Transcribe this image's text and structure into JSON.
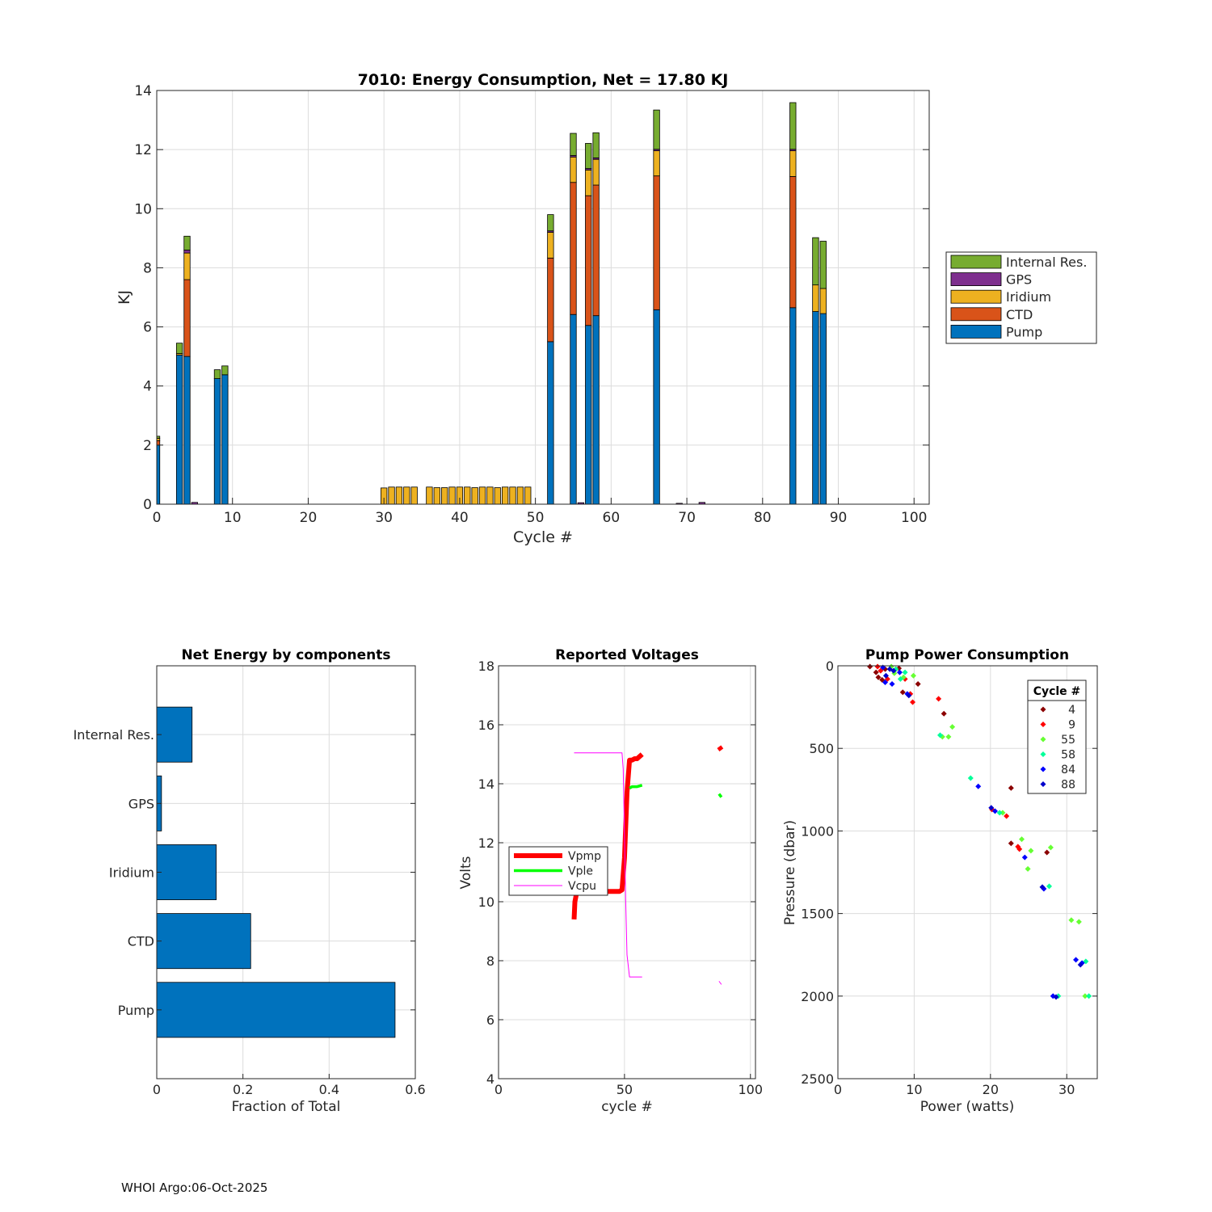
{
  "footer": "WHOI Argo:06-Oct-2025",
  "chart_data": [
    {
      "type": "bar",
      "stacked": true,
      "title": "7010: Energy Consumption,  Net =  17.80 KJ",
      "xlabel": "Cycle #",
      "ylabel": "KJ",
      "xlim": [
        0,
        102
      ],
      "ylim": [
        0,
        14
      ],
      "xticks": [
        0,
        10,
        20,
        30,
        40,
        50,
        60,
        70,
        80,
        90,
        100
      ],
      "yticks": [
        0,
        2,
        4,
        6,
        8,
        10,
        12,
        14
      ],
      "grid": true,
      "legend_location": "outside-right",
      "legend_order": [
        "Internal Res.",
        "GPS",
        "Iridium",
        "CTD",
        "Pump"
      ],
      "colors": {
        "Pump": "#0072BD",
        "CTD": "#D95319",
        "Iridium": "#EDB120",
        "GPS": "#7E2F8E",
        "Internal Res.": "#77AC30"
      },
      "categories": [
        0,
        3,
        4,
        5,
        8,
        9,
        30,
        31,
        32,
        33,
        34,
        36,
        37,
        38,
        39,
        40,
        41,
        42,
        43,
        44,
        45,
        46,
        47,
        48,
        49,
        52,
        55,
        56,
        57,
        58,
        66,
        69,
        72,
        84,
        87,
        88
      ],
      "series": [
        {
          "name": "Pump",
          "values": [
            2.0,
            5.05,
            5.0,
            0,
            4.25,
            4.38,
            0,
            0,
            0,
            0,
            0,
            0,
            0,
            0,
            0,
            0,
            0,
            0,
            0,
            0,
            0,
            0,
            0,
            0,
            0,
            5.5,
            6.42,
            0,
            6.05,
            6.38,
            6.58,
            0,
            0,
            6.65,
            6.52,
            6.45
          ]
        },
        {
          "name": "CTD",
          "values": [
            0.15,
            0,
            2.6,
            0,
            0,
            0,
            0,
            0,
            0,
            0,
            0,
            0,
            0,
            0,
            0,
            0,
            0,
            0,
            0,
            0,
            0,
            0,
            0,
            0,
            0,
            2.83,
            4.47,
            0,
            4.39,
            4.42,
            4.53,
            0,
            0,
            4.44,
            0,
            0
          ]
        },
        {
          "name": "Iridium",
          "values": [
            0.08,
            0.05,
            0.9,
            0,
            0,
            0,
            0.55,
            0.58,
            0.58,
            0.58,
            0.58,
            0.58,
            0.56,
            0.56,
            0.58,
            0.58,
            0.58,
            0.56,
            0.58,
            0.58,
            0.56,
            0.58,
            0.58,
            0.58,
            0.58,
            0.87,
            0.86,
            0,
            0.87,
            0.87,
            0.85,
            0,
            0,
            0.87,
            0.9,
            0.85
          ]
        },
        {
          "name": "GPS",
          "values": [
            0,
            0,
            0.1,
            0.06,
            0,
            0,
            0,
            0,
            0,
            0,
            0,
            0,
            0,
            0,
            0,
            0,
            0,
            0,
            0,
            0,
            0,
            0,
            0,
            0,
            0,
            0.05,
            0.05,
            0.05,
            0.05,
            0.05,
            0.05,
            0.03,
            0.06,
            0.05,
            0,
            0
          ]
        },
        {
          "name": "Internal Res.",
          "values": [
            0.07,
            0.35,
            0.47,
            0,
            0.3,
            0.3,
            0,
            0,
            0,
            0,
            0,
            0,
            0,
            0,
            0,
            0,
            0,
            0,
            0,
            0,
            0,
            0,
            0,
            0,
            0,
            0.55,
            0.75,
            0,
            0.85,
            0.85,
            1.33,
            0,
            0,
            1.58,
            1.6,
            1.6
          ]
        }
      ]
    },
    {
      "type": "bar",
      "orientation": "horizontal",
      "title": "Net Energy by components",
      "xlabel": "Fraction of Total",
      "ylabel": "",
      "xlim": [
        0,
        0.6
      ],
      "xticks": [
        0,
        0.2,
        0.4,
        0.6
      ],
      "xtick_labels": [
        "0",
        "0.2",
        "0.4",
        "0.6"
      ],
      "grid": true,
      "color": "#0072BD",
      "categories": [
        "Pump",
        "CTD",
        "Iridium",
        "GPS",
        "Internal Res."
      ],
      "values": [
        0.553,
        0.218,
        0.138,
        0.011,
        0.082
      ]
    },
    {
      "type": "line",
      "title": "Reported Voltages",
      "xlabel": "cycle #",
      "ylabel": "Volts",
      "xlim": [
        0,
        102
      ],
      "ylim": [
        4,
        18
      ],
      "xticks": [
        0,
        50,
        100
      ],
      "yticks": [
        4,
        6,
        8,
        10,
        12,
        14,
        16,
        18
      ],
      "grid": true,
      "legend_location": "west",
      "series": [
        {
          "name": "Vpmp",
          "color": "#FF0000",
          "style": "thick",
          "x": [
            30,
            30.3,
            31,
            32,
            33,
            34,
            36,
            38,
            40,
            42,
            44,
            46,
            48,
            49,
            50,
            51,
            52,
            53,
            54,
            55,
            57
          ],
          "y": [
            9.4,
            10.0,
            10.3,
            10.35,
            10.35,
            10.35,
            10.35,
            10.35,
            10.35,
            10.35,
            10.35,
            10.35,
            10.35,
            10.4,
            11.5,
            13.7,
            14.8,
            14.8,
            14.85,
            14.85,
            15.0
          ],
          "extra_points": [
            {
              "x": 88,
              "y": 15.2
            }
          ]
        },
        {
          "name": "Vple",
          "color": "#00FF00",
          "style": "medium",
          "x": [
            52,
            53,
            55,
            57
          ],
          "y": [
            13.85,
            13.9,
            13.9,
            13.95
          ],
          "extra_points": [
            {
              "x": 88,
              "y": 13.6
            }
          ]
        },
        {
          "name": "Vcpu",
          "color": "#FF00FF",
          "style": "thin",
          "x": [
            30,
            49,
            49.5,
            50.5,
            51,
            52,
            53,
            55,
            57
          ],
          "y": [
            15.05,
            15.05,
            14.5,
            10.0,
            8.2,
            7.45,
            7.45,
            7.45,
            7.45
          ],
          "extra_points": [
            {
              "x": 88,
              "y": 7.25
            }
          ]
        }
      ]
    },
    {
      "type": "scatter",
      "title": "Pump Power Consumption",
      "xlabel": "Power (watts)",
      "ylabel": "Pressure (dbar)",
      "xlim": [
        0,
        34
      ],
      "ylim": [
        0,
        2500
      ],
      "y_reversed": true,
      "xticks": [
        0,
        10,
        20,
        30
      ],
      "yticks": [
        0,
        500,
        1000,
        1500,
        2000,
        2500
      ],
      "grid": true,
      "legend_title": "Cycle #",
      "legend_location": "northeast",
      "series": [
        {
          "name": "4",
          "color": "#8B0000",
          "points": [
            [
              4.2,
              5
            ],
            [
              5,
              40
            ],
            [
              5.3,
              70
            ],
            [
              5.8,
              85
            ],
            [
              6.2,
              20
            ],
            [
              8,
              15
            ],
            [
              8.5,
              160
            ],
            [
              10.5,
              110
            ],
            [
              13.9,
              290
            ],
            [
              22.7,
              740
            ],
            [
              22.7,
              1075
            ],
            [
              27.4,
              1130
            ]
          ]
        },
        {
          "name": "9",
          "color": "#FF0000",
          "points": [
            [
              5.2,
              5
            ],
            [
              5.6,
              30
            ],
            [
              6.5,
              80
            ],
            [
              7.5,
              25
            ],
            [
              8.8,
              80
            ],
            [
              9.5,
              170
            ],
            [
              9.8,
              220
            ],
            [
              13.2,
              200
            ],
            [
              20.2,
              870
            ],
            [
              22.1,
              910
            ],
            [
              23.6,
              1095
            ],
            [
              23.8,
              1110
            ]
          ]
        },
        {
          "name": "55",
          "color": "#66FF33",
          "points": [
            [
              7,
              5
            ],
            [
              7.4,
              45
            ],
            [
              8.6,
              70
            ],
            [
              9.9,
              60
            ],
            [
              13.7,
              430
            ],
            [
              14.5,
              430
            ],
            [
              15,
              370
            ],
            [
              21.6,
              890
            ],
            [
              24.1,
              1050
            ],
            [
              24.9,
              1230
            ],
            [
              25.3,
              1120
            ],
            [
              27.9,
              1100
            ],
            [
              30.6,
              1540
            ],
            [
              31.6,
              1550
            ],
            [
              32.4,
              2000
            ]
          ]
        },
        {
          "name": "58",
          "color": "#00FF99",
          "points": [
            [
              7.6,
              20
            ],
            [
              8.2,
              80
            ],
            [
              8.8,
              40
            ],
            [
              13.4,
              420
            ],
            [
              17.4,
              680
            ],
            [
              21.2,
              890
            ],
            [
              27.7,
              1335
            ],
            [
              32.5,
              1790
            ],
            [
              32.9,
              2000
            ],
            [
              28.9,
              2000
            ]
          ]
        },
        {
          "name": "84",
          "color": "#0000FF",
          "points": [
            [
              5.9,
              10
            ],
            [
              6.2,
              100
            ],
            [
              7.1,
              110
            ],
            [
              8.1,
              40
            ],
            [
              9.1,
              170
            ],
            [
              18.4,
              730
            ],
            [
              20.6,
              880
            ],
            [
              24.5,
              1160
            ],
            [
              27.0,
              1350
            ],
            [
              31.2,
              1780
            ],
            [
              32.0,
              1800
            ],
            [
              28.2,
              2000
            ]
          ]
        },
        {
          "name": "88",
          "color": "#0000CC",
          "points": [
            [
              6.8,
              20
            ],
            [
              6.3,
              60
            ],
            [
              7.3,
              30
            ],
            [
              9.3,
              180
            ],
            [
              20.1,
              860
            ],
            [
              26.8,
              1340
            ],
            [
              31.8,
              1810
            ],
            [
              28.6,
              2005
            ]
          ]
        }
      ]
    }
  ]
}
